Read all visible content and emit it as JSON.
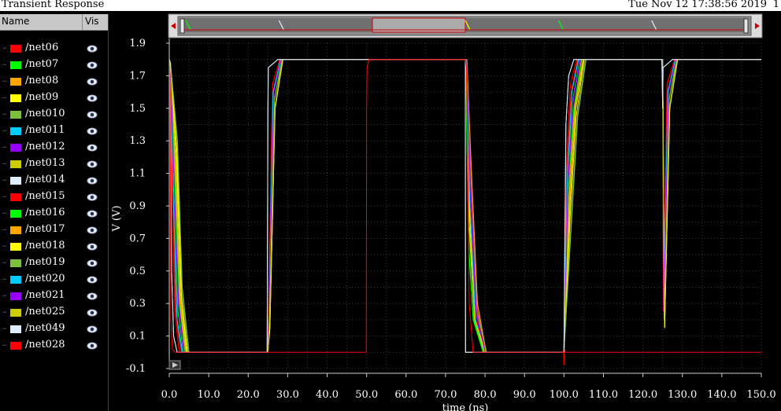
{
  "window": {
    "title": "Transient Response",
    "datestamp": "Tue Nov 12 17:38:56 2019",
    "page_number": "1"
  },
  "legend": {
    "name_header": "Name",
    "vis_header": "Vis",
    "visibility_icon": "eye-icon",
    "signals": [
      {
        "label": "/net06",
        "color": "#ff0000"
      },
      {
        "label": "/net07",
        "color": "#00ff00"
      },
      {
        "label": "/net08",
        "color": "#ffa500"
      },
      {
        "label": "/net09",
        "color": "#ffff00"
      },
      {
        "label": "/net010",
        "color": "#7bbf3b"
      },
      {
        "label": "/net011",
        "color": "#00ccff"
      },
      {
        "label": "/net012",
        "color": "#9900ff"
      },
      {
        "label": "/net013",
        "color": "#cccc00"
      },
      {
        "label": "/net014",
        "color": "#ddeeff"
      },
      {
        "label": "/net015",
        "color": "#ff0000"
      },
      {
        "label": "/net016",
        "color": "#00ff00"
      },
      {
        "label": "/net017",
        "color": "#ffa500"
      },
      {
        "label": "/net018",
        "color": "#ffff00"
      },
      {
        "label": "/net019",
        "color": "#7bbf3b"
      },
      {
        "label": "/net020",
        "color": "#00ccff"
      },
      {
        "label": "/net021",
        "color": "#9900ff"
      },
      {
        "label": "/net025",
        "color": "#cccc00"
      },
      {
        "label": "/net049",
        "color": "#ddeeff"
      },
      {
        "label": "/net028",
        "color": "#ff0000"
      }
    ]
  },
  "chart_data": {
    "type": "line",
    "title": "Transient Response",
    "xlabel": "time (ns)",
    "ylabel": "V (V)",
    "xlim": [
      0,
      150
    ],
    "ylim": [
      -0.1,
      1.9
    ],
    "x_ticks": [
      "0.0",
      "10.0",
      "20.0",
      "30.0",
      "40.0",
      "50.0",
      "60.0",
      "70.0",
      "80.0",
      "90.0",
      "100.0",
      "110.0",
      "120.0",
      "130.0",
      "140.0",
      "150.0"
    ],
    "y_ticks": [
      "-0.1",
      "0.1",
      "0.3",
      "0.5",
      "0.7",
      "0.9",
      "1.1",
      "1.3",
      "1.5",
      "1.7",
      "1.9"
    ],
    "grid": true,
    "series": [
      {
        "name": "/net06",
        "x": [
          0,
          0.2,
          0.8,
          1.4,
          2.5,
          24.9,
          25.2,
          26.2,
          28,
          75.3,
          76.2,
          77.6,
          79.5,
          100,
          100.7,
          101.6,
          103.2,
          124.9,
          125.2,
          126.1,
          128,
          150
        ],
        "y": [
          1.8,
          1.72,
          0.9,
          0.25,
          0,
          0,
          0.25,
          1.65,
          1.8,
          1.8,
          0.9,
          0.25,
          0,
          0,
          1.2,
          1.65,
          1.8,
          1.8,
          0.25,
          1.65,
          1.8,
          1.8
        ]
      },
      {
        "name": "/net07",
        "x": [
          0,
          0.3,
          1.2,
          2.2,
          3.6,
          25,
          25.4,
          26.6,
          28.5,
          75.1,
          75.8,
          77,
          79.5,
          100,
          100.9,
          102.2,
          104,
          125,
          125.4,
          126.6,
          128.5,
          150
        ],
        "y": [
          1.8,
          1.78,
          1.0,
          0.25,
          0,
          0,
          0.2,
          1.55,
          1.8,
          1.8,
          0.7,
          0.2,
          0,
          0,
          1.1,
          1.55,
          1.8,
          1.8,
          0.2,
          1.55,
          1.8,
          1.8
        ]
      },
      {
        "name": "/net08",
        "x": [
          0,
          0.3,
          1.5,
          2.6,
          4.0,
          25,
          25.3,
          26.4,
          28.3,
          75.4,
          76.4,
          78,
          80,
          100,
          101.2,
          102.6,
          104.5,
          125,
          125.3,
          126.4,
          128.3,
          150
        ],
        "y": [
          1.8,
          1.78,
          1.1,
          0.3,
          0,
          0,
          0.3,
          1.6,
          1.8,
          1.8,
          1.1,
          0.3,
          0,
          0,
          1.0,
          1.5,
          1.8,
          1.8,
          0.3,
          1.6,
          1.8,
          1.8
        ]
      },
      {
        "name": "/net09",
        "x": [
          0,
          0.3,
          1.8,
          3.0,
          4.4,
          25,
          25.5,
          26.8,
          28.8,
          75.2,
          76.0,
          77.4,
          79.8,
          100,
          101.5,
          103,
          105,
          125,
          125.5,
          126.8,
          128.8,
          150
        ],
        "y": [
          1.8,
          1.78,
          1.2,
          0.35,
          0,
          0,
          0.15,
          1.5,
          1.8,
          1.8,
          0.8,
          0.2,
          0,
          0,
          0.9,
          1.5,
          1.8,
          1.8,
          0.15,
          1.5,
          1.8,
          1.8
        ]
      },
      {
        "name": "/net010",
        "x": [
          0,
          0.3,
          2.0,
          3.2,
          4.8,
          25,
          25.4,
          26.6,
          28.6,
          75.3,
          76.3,
          77.8,
          80.2,
          100,
          101.8,
          103.4,
          105.4,
          125,
          125.4,
          126.6,
          128.6,
          150
        ],
        "y": [
          1.8,
          1.78,
          1.3,
          0.4,
          0,
          0,
          0.2,
          1.55,
          1.8,
          1.8,
          1.0,
          0.25,
          0,
          0,
          0.8,
          1.45,
          1.8,
          1.8,
          0.2,
          1.55,
          1.8,
          1.8
        ]
      },
      {
        "name": "/net011",
        "x": [
          0,
          0.3,
          1.0,
          1.9,
          3.2,
          25,
          25.3,
          26.3,
          28.2,
          75.2,
          76.1,
          77.5,
          79.6,
          100,
          100.8,
          101.9,
          103.6,
          125,
          125.3,
          126.3,
          128.2,
          150
        ],
        "y": [
          1.8,
          1.78,
          0.9,
          0.2,
          0,
          0,
          0.3,
          1.6,
          1.8,
          1.8,
          0.9,
          0.2,
          0,
          0,
          1.15,
          1.6,
          1.8,
          1.8,
          0.3,
          1.6,
          1.8,
          1.8
        ]
      },
      {
        "name": "/net012",
        "x": [
          0,
          0.3,
          1.3,
          2.3,
          3.7,
          25,
          25.3,
          26.5,
          28.4,
          75.3,
          76.2,
          77.7,
          79.9,
          100,
          101,
          102.3,
          104.1,
          125,
          125.3,
          126.5,
          128.4,
          150
        ],
        "y": [
          1.8,
          1.78,
          1.0,
          0.3,
          0,
          0,
          0.25,
          1.6,
          1.8,
          1.8,
          1.05,
          0.25,
          0,
          0,
          1.05,
          1.55,
          1.8,
          1.8,
          0.25,
          1.6,
          1.8,
          1.8
        ]
      },
      {
        "name": "/net013",
        "x": [
          0,
          0.3,
          1.6,
          2.7,
          4.2,
          25,
          25.4,
          26.7,
          28.7,
          75.2,
          76.0,
          77.3,
          79.7,
          100,
          101.3,
          102.8,
          104.8,
          125,
          125.4,
          126.7,
          128.7,
          150
        ],
        "y": [
          1.8,
          1.78,
          1.15,
          0.3,
          0,
          0,
          0.2,
          1.5,
          1.8,
          1.8,
          0.75,
          0.2,
          0,
          0,
          0.95,
          1.5,
          1.8,
          1.8,
          0.2,
          1.5,
          1.8,
          1.8
        ]
      },
      {
        "name": "/net014",
        "x": [
          0,
          0.2,
          0.6,
          1.1,
          2.0,
          24.8,
          25.0,
          25.1,
          27.5,
          75.0,
          75.05,
          75.6,
          77.0,
          100,
          100.5,
          101.2,
          102.5,
          124.8,
          125.0,
          125.1,
          127.5,
          150
        ],
        "y": [
          1.8,
          1.78,
          0.5,
          0.1,
          0,
          0,
          1.5,
          1.75,
          1.8,
          1.8,
          0.0,
          0.0,
          0,
          0,
          1.4,
          1.7,
          1.8,
          1.8,
          1.5,
          1.75,
          1.8,
          1.8
        ]
      },
      {
        "name": "/net015",
        "x": [
          0,
          0.2,
          0.9,
          1.6,
          2.8,
          25,
          25.2,
          26.2,
          28,
          75.4,
          76.3,
          77.9,
          80,
          100,
          100.8,
          101.8,
          103.4,
          125,
          125.2,
          126.2,
          128,
          150
        ],
        "y": [
          1.8,
          1.78,
          0.95,
          0.25,
          0,
          0,
          0.3,
          1.65,
          1.8,
          1.8,
          1.1,
          0.3,
          0,
          0,
          1.15,
          1.6,
          1.8,
          1.8,
          0.3,
          1.65,
          1.8,
          1.8
        ]
      },
      {
        "name": "/net016",
        "x": [
          0,
          0.3,
          1.4,
          2.5,
          3.9,
          25,
          25.4,
          26.6,
          28.6,
          75.1,
          75.9,
          77.1,
          79.6,
          100,
          101.1,
          102.5,
          104.4,
          125,
          125.4,
          126.6,
          128.6,
          150
        ],
        "y": [
          1.8,
          1.78,
          1.05,
          0.3,
          0,
          0,
          0.2,
          1.55,
          1.8,
          1.8,
          0.6,
          0.2,
          0,
          0,
          1.0,
          1.5,
          1.8,
          1.8,
          0.2,
          1.55,
          1.8,
          1.8
        ]
      },
      {
        "name": "/net017",
        "x": [
          0,
          0.3,
          1.7,
          2.8,
          4.3,
          25,
          25.3,
          26.4,
          28.3,
          75.4,
          76.5,
          78.1,
          80.3,
          100,
          101.4,
          102.9,
          104.9,
          125,
          125.3,
          126.4,
          128.3,
          150
        ],
        "y": [
          1.8,
          1.78,
          1.15,
          0.35,
          0,
          0,
          0.3,
          1.6,
          1.8,
          1.8,
          1.15,
          0.3,
          0,
          0,
          0.9,
          1.5,
          1.8,
          1.8,
          0.3,
          1.6,
          1.8,
          1.8
        ]
      },
      {
        "name": "/net018",
        "x": [
          0,
          0.3,
          1.9,
          3.1,
          4.6,
          25,
          25.5,
          26.8,
          28.8,
          75.2,
          76.1,
          77.6,
          80.0,
          100,
          101.6,
          103.1,
          105.1,
          125,
          125.5,
          126.8,
          128.8,
          150
        ],
        "y": [
          1.8,
          1.78,
          1.25,
          0.35,
          0,
          0,
          0.15,
          1.5,
          1.8,
          1.8,
          0.85,
          0.2,
          0,
          0,
          0.85,
          1.45,
          1.8,
          1.8,
          0.15,
          1.5,
          1.8,
          1.8
        ]
      },
      {
        "name": "/net019",
        "x": [
          0,
          0.3,
          2.1,
          3.3,
          5.0,
          25,
          25.4,
          26.6,
          28.6,
          75.3,
          76.4,
          78.0,
          80.4,
          100,
          101.9,
          103.5,
          105.6,
          125,
          125.4,
          126.6,
          128.6,
          150
        ],
        "y": [
          1.8,
          1.78,
          1.3,
          0.4,
          0,
          0,
          0.2,
          1.55,
          1.8,
          1.8,
          1.0,
          0.25,
          0,
          0,
          0.8,
          1.45,
          1.8,
          1.8,
          0.2,
          1.55,
          1.8,
          1.8
        ]
      },
      {
        "name": "/net020",
        "x": [
          0,
          0.3,
          1.1,
          2.0,
          3.4,
          25,
          25.3,
          26.3,
          28.2,
          75.2,
          76.1,
          77.6,
          79.7,
          100,
          100.9,
          102.0,
          103.7,
          125,
          125.3,
          126.3,
          128.2,
          150
        ],
        "y": [
          1.8,
          1.78,
          0.9,
          0.2,
          0,
          0,
          0.3,
          1.6,
          1.8,
          1.8,
          0.95,
          0.2,
          0,
          0,
          1.1,
          1.6,
          1.8,
          1.8,
          0.3,
          1.6,
          1.8,
          1.8
        ]
      },
      {
        "name": "/net021",
        "x": [
          0,
          0.3,
          1.3,
          2.4,
          3.8,
          25,
          25.3,
          26.5,
          28.4,
          75.3,
          76.3,
          77.8,
          80.0,
          100,
          101.1,
          102.4,
          104.2,
          125,
          125.3,
          126.5,
          128.4,
          150
        ],
        "y": [
          1.8,
          1.78,
          1.0,
          0.3,
          0,
          0,
          0.25,
          1.6,
          1.8,
          1.8,
          1.05,
          0.25,
          0,
          0,
          1.05,
          1.55,
          1.8,
          1.8,
          0.25,
          1.6,
          1.8,
          1.8
        ]
      },
      {
        "name": "/net025",
        "x": [
          0,
          0.3,
          1.6,
          2.8,
          4.3,
          25,
          25.4,
          26.7,
          28.7,
          75.2,
          76.0,
          77.4,
          79.8,
          100,
          101.3,
          102.8,
          104.8,
          125,
          125.4,
          126.7,
          128.7,
          150
        ],
        "y": [
          1.8,
          1.78,
          1.15,
          0.3,
          0,
          0,
          0.2,
          1.5,
          1.8,
          1.8,
          0.75,
          0.2,
          0,
          0,
          0.95,
          1.5,
          1.8,
          1.8,
          0.2,
          1.5,
          1.8,
          1.8
        ]
      },
      {
        "name": "/net049",
        "x": [
          0,
          0.2,
          0.6,
          1.1,
          2.0,
          24.8,
          25.0,
          25.1,
          27.5,
          75.0,
          75.05,
          75.6,
          77.0,
          100,
          100.5,
          101.2,
          102.5,
          124.8,
          125.0,
          125.1,
          127.5,
          150
        ],
        "y": [
          1.8,
          1.78,
          0.5,
          0.1,
          0,
          0,
          1.5,
          1.75,
          1.8,
          1.8,
          0.0,
          0.0,
          0,
          0,
          1.4,
          1.7,
          1.8,
          1.8,
          1.5,
          1.75,
          1.8,
          1.8
        ]
      },
      {
        "name": "/net028",
        "x": [
          0,
          0.2,
          0.4,
          0.8,
          1.5,
          49.9,
          50.0,
          50.1,
          50.6,
          75.0,
          75.3,
          75.6,
          76.0,
          77.0,
          99.9,
          100.0,
          100.2,
          100.4,
          101.0,
          150
        ],
        "y": [
          1.8,
          1.7,
          0.2,
          0.02,
          0,
          0,
          1.5,
          1.75,
          1.8,
          1.8,
          1.75,
          1.2,
          0.3,
          0,
          0,
          -0.08,
          0.02,
          0,
          0,
          0
        ]
      }
    ]
  }
}
